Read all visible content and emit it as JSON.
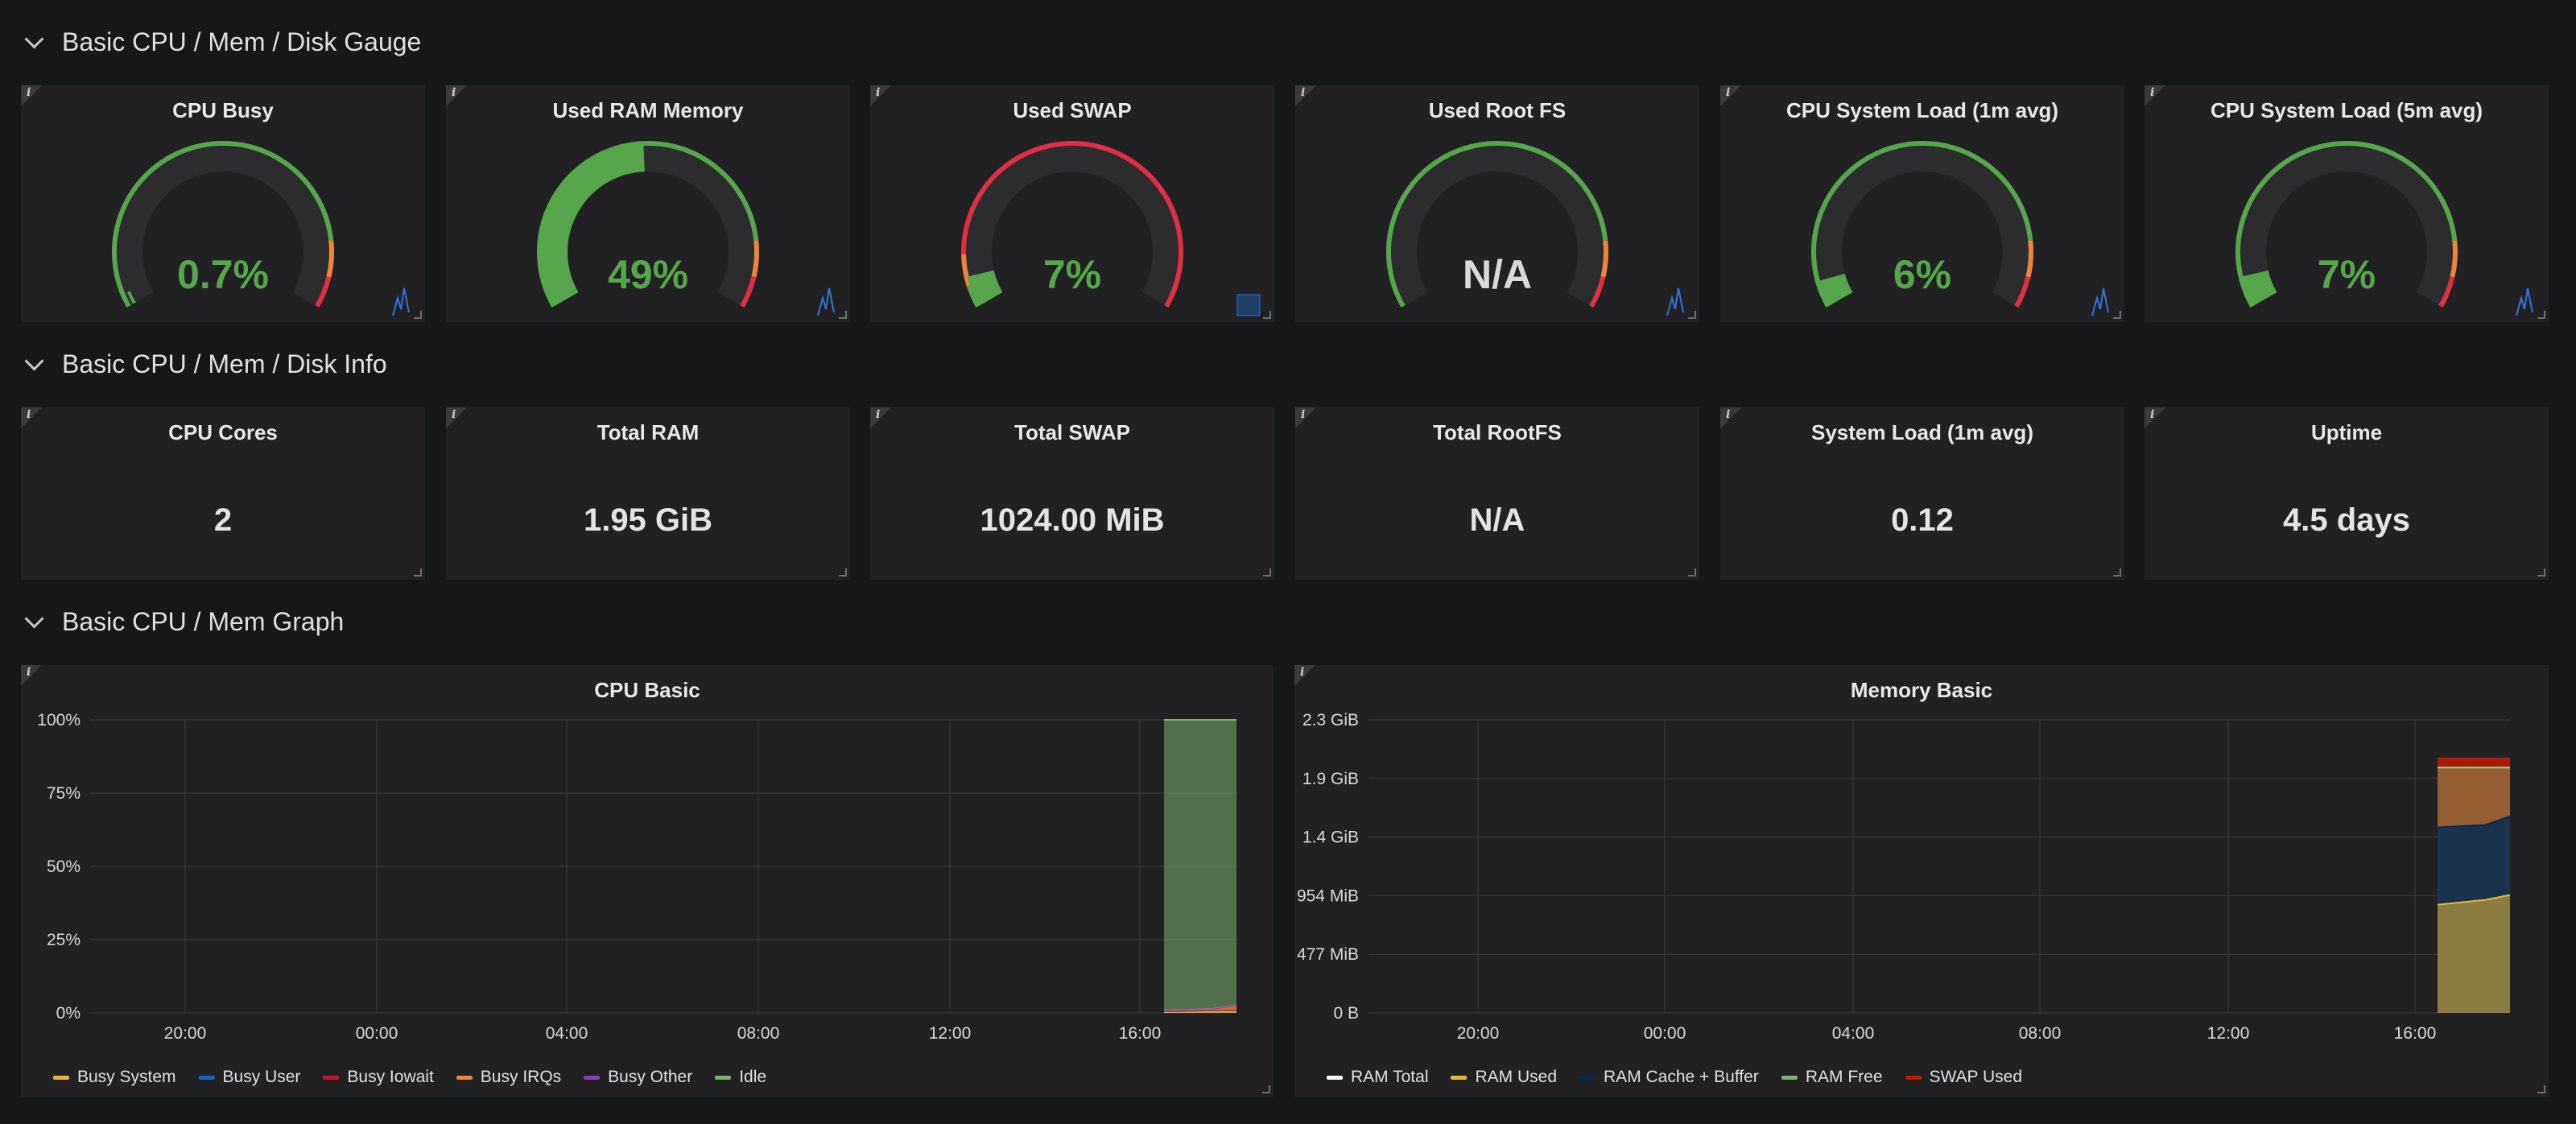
{
  "rows": {
    "gauge": {
      "title": "Basic CPU / Mem / Disk Gauge"
    },
    "info": {
      "title": "Basic CPU / Mem / Disk Info"
    },
    "graph": {
      "title": "Basic CPU / Mem Graph"
    }
  },
  "info_icon": "i",
  "gauges": [
    {
      "title": "CPU Busy",
      "value": "0.7%",
      "fraction": 0.007,
      "color": "#56a64b",
      "track": "green"
    },
    {
      "title": "Used RAM Memory",
      "value": "49%",
      "fraction": 0.49,
      "color": "#56a64b",
      "track": "green"
    },
    {
      "title": "Used SWAP",
      "value": "7%",
      "fraction": 0.07,
      "color": "#56a64b",
      "track": "red"
    },
    {
      "title": "Used Root FS",
      "value": "N/A",
      "fraction": 0,
      "color": "#d8d9da",
      "track": "green"
    },
    {
      "title": "CPU System Load (1m avg)",
      "value": "6%",
      "fraction": 0.06,
      "color": "#56a64b",
      "track": "green"
    },
    {
      "title": "CPU System Load (5m avg)",
      "value": "7%",
      "fraction": 0.07,
      "color": "#56a64b",
      "track": "green"
    }
  ],
  "stats": [
    {
      "title": "CPU Cores",
      "value": "2"
    },
    {
      "title": "Total RAM",
      "value": "1.95 GiB"
    },
    {
      "title": "Total SWAP",
      "value": "1024.00 MiB"
    },
    {
      "title": "Total RootFS",
      "value": "N/A"
    },
    {
      "title": "System Load (1m avg)",
      "value": "0.12"
    },
    {
      "title": "Uptime",
      "value": "4.5 days"
    }
  ],
  "colors": {
    "green": "#56a64b",
    "orange": "#ef843c",
    "red": "#e02f44",
    "panel": "#212124",
    "grid": "#3a3a3d"
  },
  "chart_data": [
    {
      "type": "area",
      "title": "CPU Basic",
      "x_ticks": [
        "20:00",
        "00:00",
        "04:00",
        "08:00",
        "12:00",
        "16:00"
      ],
      "y_ticks": [
        "100%",
        "75%",
        "50%",
        "25%",
        "0%"
      ],
      "ylim": [
        0,
        100
      ],
      "series": [
        {
          "name": "Busy System",
          "color": "#eab839",
          "values": [
            0.3,
            0.4,
            0.5,
            0.6
          ]
        },
        {
          "name": "Busy User",
          "color": "#1f60c4",
          "values": [
            0.3,
            0.3,
            0.4,
            0.5
          ]
        },
        {
          "name": "Busy Iowait",
          "color": "#c4162a",
          "values": [
            0,
            0,
            0,
            0
          ]
        },
        {
          "name": "Busy IRQs",
          "color": "#ef843c",
          "values": [
            0.2,
            0.3,
            0.5,
            1.5
          ]
        },
        {
          "name": "Busy Other",
          "color": "#8f3bb8",
          "values": [
            0,
            0,
            0,
            0
          ]
        },
        {
          "name": "Idle",
          "color": "#7eb26d",
          "values": [
            99.2,
            99.0,
            98.6,
            97.4
          ]
        }
      ]
    },
    {
      "type": "area",
      "title": "Memory Basic",
      "x_ticks": [
        "20:00",
        "00:00",
        "04:00",
        "08:00",
        "12:00",
        "16:00"
      ],
      "y_ticks": [
        "2.3 GiB",
        "1.9 GiB",
        "1.4 GiB",
        "954 MiB",
        "477 MiB",
        "0 B"
      ],
      "ylim_mib": [
        0,
        2385
      ],
      "series": [
        {
          "name": "RAM Total",
          "color": "#fafafa",
          "values": [
            1997,
            1997,
            1997,
            1997
          ]
        },
        {
          "name": "RAM Used",
          "color": "#eab839",
          "values": [
            880,
            900,
            920,
            960
          ]
        },
        {
          "name": "RAM Cache + Buffer",
          "color": "#052b51",
          "values": [
            1510,
            1520,
            1530,
            1600
          ]
        },
        {
          "name": "RAM Free",
          "color": "#7eb26d",
          "values": [
            1997,
            1997,
            1997,
            1997
          ]
        },
        {
          "name": "SWAP Used",
          "color": "#bf1b00",
          "values": [
            2070,
            2070,
            2070,
            2070
          ]
        }
      ]
    }
  ]
}
